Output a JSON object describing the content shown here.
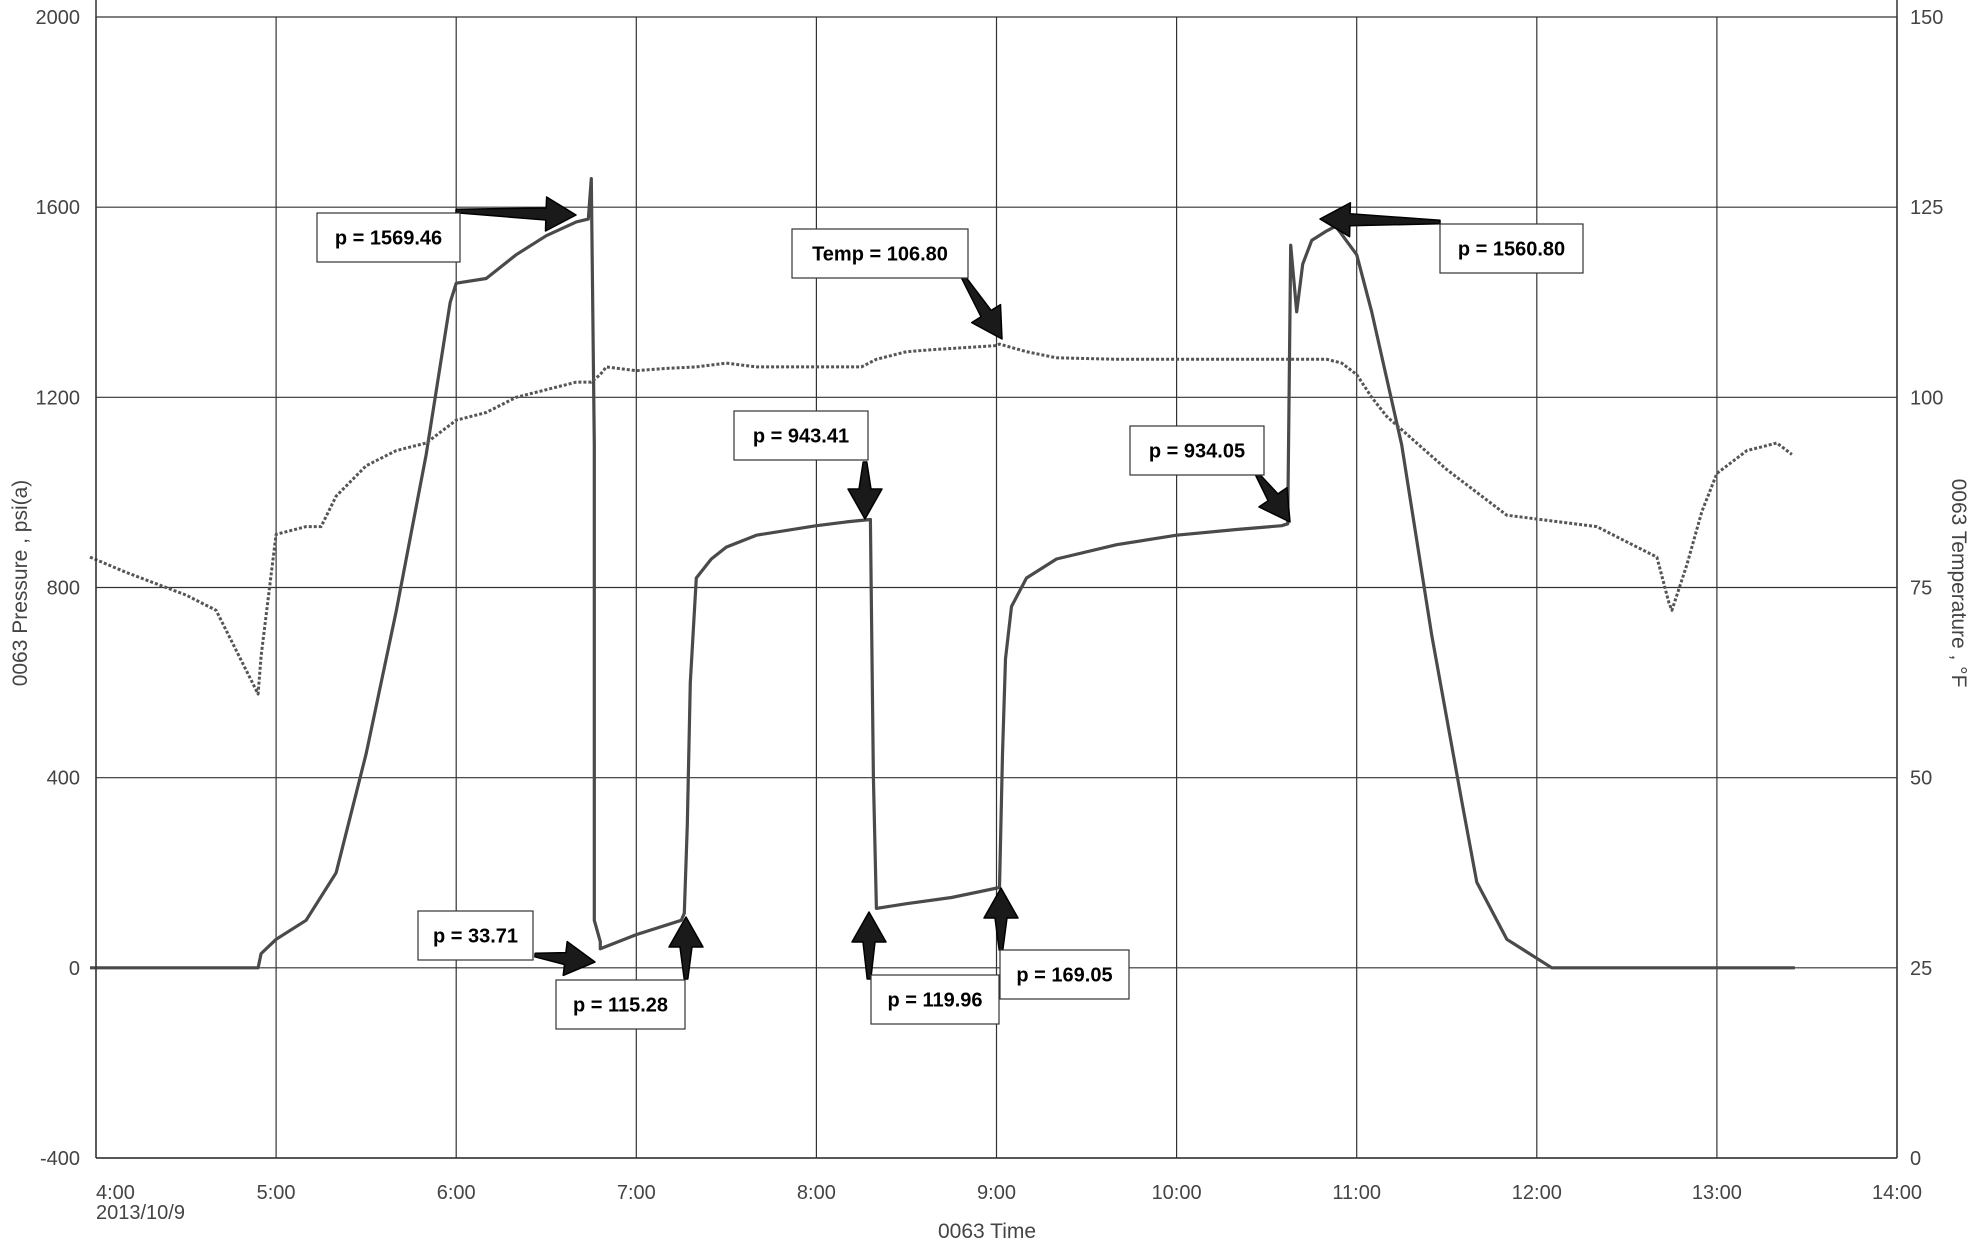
{
  "chart_data": {
    "type": "line",
    "title": "",
    "xlabel": "0063 Time",
    "ylabel_left": "0063 Pressure , psi(a)",
    "ylabel_right": "0063 Temperature , °F",
    "x_range": [
      "4:00",
      "14:00"
    ],
    "x_ticks": [
      "4:00",
      "5:00",
      "6:00",
      "7:00",
      "8:00",
      "9:00",
      "10:00",
      "11:00",
      "12:00",
      "13:00",
      "14:00"
    ],
    "x_date_label": "2013/10/9",
    "ylim_left": [
      -400,
      2000
    ],
    "yticks_left": [
      -400,
      0,
      400,
      800,
      1200,
      1600,
      2000
    ],
    "ylim_right": [
      0,
      150
    ],
    "yticks_right": [
      0,
      25,
      50,
      75,
      100,
      125,
      150
    ],
    "grid": true,
    "colors": {
      "pressure": "#4a4a4a",
      "temperature": "#555555",
      "grid": "#333333",
      "arrow": "#1a1a1a"
    },
    "series": [
      {
        "axis": "left",
        "style": "solid",
        "x": [
          "3:58",
          "4:30",
          "4:54",
          "4:55",
          "5:00",
          "5:10",
          "5:20",
          "5:30",
          "5:40",
          "5:50",
          "5:58",
          "6:00",
          "6:10",
          "6:20",
          "6:30",
          "6:40",
          "6:44",
          "6:45",
          "6:46",
          "6:46",
          "6:48",
          "6:48",
          "7:00",
          "7:15",
          "7:16",
          "7:17",
          "7:18",
          "7:20",
          "7:25",
          "7:30",
          "7:40",
          "8:00",
          "8:10",
          "8:18",
          "8:19",
          "8:20",
          "8:30",
          "8:45",
          "9:01",
          "9:02",
          "9:03",
          "9:05",
          "9:10",
          "9:20",
          "9:40",
          "10:00",
          "10:20",
          "10:35",
          "10:37",
          "10:38",
          "10:40",
          "10:42",
          "10:45",
          "10:50",
          "10:53",
          "11:00",
          "11:05",
          "11:15",
          "11:25",
          "11:35",
          "11:40",
          "11:45",
          "11:50",
          "12:00",
          "12:05",
          "12:08",
          "12:09",
          "12:30",
          "13:00",
          "13:20",
          "13:26"
        ],
        "y": [
          0,
          0,
          0,
          30,
          60,
          100,
          200,
          450,
          750,
          1080,
          1400,
          1440,
          1450,
          1500,
          1540,
          1569,
          1575,
          1660,
          1100,
          100,
          55,
          40,
          70,
          100,
          115,
          300,
          600,
          820,
          860,
          885,
          910,
          930,
          938,
          943,
          400,
          125,
          135,
          148,
          169,
          450,
          650,
          760,
          820,
          860,
          890,
          910,
          922,
          930,
          934,
          1520,
          1380,
          1480,
          1530,
          1550,
          1560,
          1500,
          1380,
          1100,
          700,
          350,
          180,
          120,
          60,
          20,
          0,
          0,
          0,
          0,
          0,
          0,
          0
        ]
      },
      {
        "axis": "right",
        "style": "dotted",
        "x": [
          "3:58",
          "4:10",
          "4:30",
          "4:40",
          "4:54",
          "4:55",
          "5:00",
          "5:10",
          "5:15",
          "5:20",
          "5:30",
          "5:40",
          "5:50",
          "6:00",
          "6:10",
          "6:20",
          "6:30",
          "6:40",
          "6:45",
          "6:48",
          "6:50",
          "7:00",
          "7:10",
          "7:20",
          "7:30",
          "7:40",
          "8:00",
          "8:15",
          "8:20",
          "8:30",
          "8:40",
          "9:00",
          "9:01",
          "9:10",
          "9:20",
          "9:40",
          "10:00",
          "10:20",
          "10:40",
          "10:50",
          "10:55",
          "11:00",
          "11:05",
          "11:10",
          "11:20",
          "11:30",
          "11:40",
          "11:50",
          "12:00",
          "12:20",
          "12:30",
          "12:40",
          "12:44",
          "12:45",
          "12:50",
          "12:55",
          "13:00",
          "13:10",
          "13:20",
          "13:25"
        ],
        "y": [
          79,
          77,
          74,
          72,
          61,
          66,
          82,
          83,
          83,
          87,
          91,
          93,
          94,
          97,
          98,
          100,
          101,
          102,
          102,
          103,
          104,
          103.5,
          103.8,
          104,
          104.5,
          104,
          104,
          104,
          105,
          106,
          106.3,
          106.8,
          107,
          106,
          105.2,
          105,
          105,
          105,
          105,
          105,
          104.5,
          103,
          100,
          97.5,
          94,
          90.5,
          87.5,
          84.5,
          84,
          83,
          81,
          79,
          73,
          72,
          78,
          85,
          90,
          93,
          94,
          92.5
        ]
      }
    ],
    "annotations": [
      {
        "label": "p = 1569.46"
      },
      {
        "label": "Temp = 106.80"
      },
      {
        "label": "p = 1560.80"
      },
      {
        "label": "p = 943.41"
      },
      {
        "label": "p = 934.05"
      },
      {
        "label": "p = 33.71"
      },
      {
        "label": "p = 115.28"
      },
      {
        "label": "p = 119.96"
      },
      {
        "label": "p = 169.05"
      }
    ]
  }
}
